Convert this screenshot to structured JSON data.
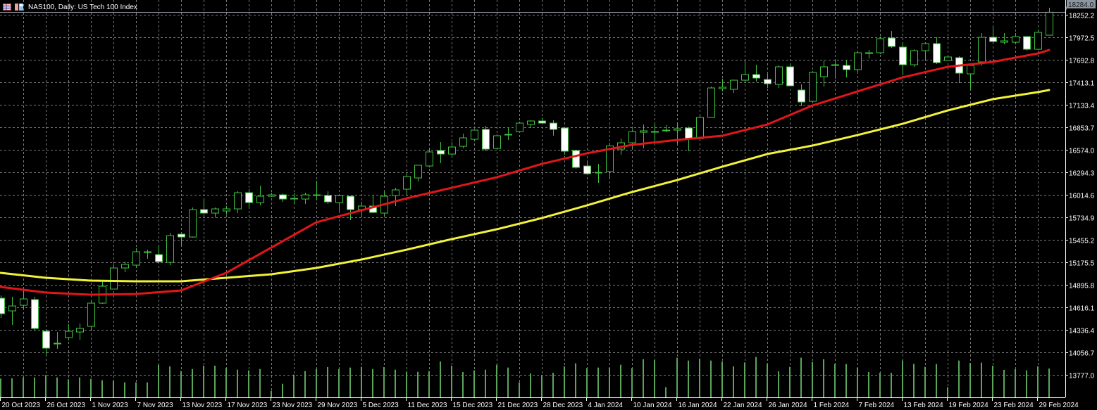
{
  "header": {
    "title": "NAS100, Daily:  US Tech 100 Index",
    "icons": [
      "table-grid-icon",
      "save-template-icon"
    ]
  },
  "colors": {
    "background": "#000000",
    "grid": "#7a7a7a",
    "bull_candle": "#3fc23f",
    "bear_candle_fill": "#ffffff",
    "volume": "#5aa55a",
    "ma_fast": "#e0161b",
    "ma_slow": "#f2f23a",
    "axis_text": "#ffffff",
    "price_label_bg": "#8c96a0"
  },
  "chart_data": {
    "type": "candlestick",
    "symbol": "NAS100",
    "timeframe": "Daily",
    "ylim": [
      13498,
      18436
    ],
    "grid": true,
    "y_ticks": [
      "18252.2",
      "17972.5",
      "17692.8",
      "17413.1",
      "17133.4",
      "16853.7",
      "16574.0",
      "16294.3",
      "16014.6",
      "15734.9",
      "15455.2",
      "15175.5",
      "14895.8",
      "14616.1",
      "14336.4",
      "14056.7",
      "13777.0"
    ],
    "x_tick_labels": [
      "20 Oct 2023",
      "26 Oct 2023",
      "1 Nov 2023",
      "7 Nov 2023",
      "13 Nov 2023",
      "17 Nov 2023",
      "23 Nov 2023",
      "29 Nov 2023",
      "5 Dec 2023",
      "11 Dec 2023",
      "15 Dec 2023",
      "21 Dec 2023",
      "28 Dec 2023",
      "4 Jan 2024",
      "10 Jan 2024",
      "16 Jan 2024",
      "22 Jan 2024",
      "26 Jan 2024",
      "1 Feb 2024",
      "7 Feb 2024",
      "13 Feb 2024",
      "19 Feb 2024",
      "23 Feb 2024",
      "29 Feb 2024"
    ],
    "current_price": "18284.0",
    "ohlc": [
      [
        14729.8,
        14764.7,
        14485.0,
        14537.5
      ],
      [
        14572.7,
        14747.5,
        14397.9,
        14633.9
      ],
      [
        14642.6,
        14834.9,
        14598.9,
        14721.3
      ],
      [
        14712.6,
        14747.5,
        14336.7,
        14354.2
      ],
      [
        14319.3,
        14345.5,
        14022.1,
        14109.5
      ],
      [
        14161.9,
        14310.5,
        14100.8,
        14170.7
      ],
      [
        14240.6,
        14406.7,
        14205.6,
        14319.3
      ],
      [
        14310.5,
        14415.4,
        14214.4,
        14354.2
      ],
      [
        14380.4,
        14695.1,
        14328.0,
        14668.9
      ],
      [
        14668.9,
        14931.1,
        14660.1,
        14878.6
      ],
      [
        14843.7,
        15149.6,
        14843.7,
        15105.9
      ],
      [
        15105.9,
        15184.5,
        15053.4,
        15149.6
      ],
      [
        15140.8,
        15350.6,
        15105.9,
        15306.9
      ],
      [
        15298.1,
        15333.1,
        15219.5,
        15306.9
      ],
      [
        15271.9,
        15394.3,
        15175.8,
        15184.5
      ],
      [
        15175.8,
        15542.9,
        15140.8,
        15507.9
      ],
      [
        15525.4,
        15525.4,
        15394.3,
        15490.4
      ],
      [
        15490.4,
        15857.5,
        15481.7,
        15831.3
      ],
      [
        15831.3,
        15971.1,
        15770.1,
        15787.6
      ],
      [
        15787.6,
        15857.5,
        15735.1,
        15840.0
      ],
      [
        15813.8,
        15875.0,
        15770.1,
        15840.0
      ],
      [
        15840.0,
        16058.5,
        15787.6,
        16041.0
      ],
      [
        16041.0,
        16084.7,
        15857.5,
        15918.7
      ],
      [
        15918.7,
        16128.4,
        15883.7,
        15997.3
      ],
      [
        15997.3,
        16041.0,
        15988.6,
        16014.8
      ],
      [
        16014.8,
        16032.3,
        15927.4,
        15962.4
      ],
      [
        15962.4,
        16041.0,
        15901.2,
        15971.1
      ],
      [
        15962.4,
        16041.0,
        15901.2,
        16014.8
      ],
      [
        16006.1,
        16189.6,
        15962.4,
        16014.8
      ],
      [
        16006.1,
        16058.5,
        15901.2,
        15927.4
      ],
      [
        15918.7,
        16006.1,
        15813.8,
        16006.1
      ],
      [
        15997.3,
        15997.3,
        15700.2,
        15831.3
      ],
      [
        15831.3,
        15927.4,
        15743.9,
        15875.0
      ],
      [
        15875.0,
        16014.8,
        15787.6,
        15796.3
      ],
      [
        15787.6,
        16049.8,
        15752.6,
        15997.3
      ],
      [
        16006.1,
        16102.2,
        15875.0,
        16076.0
      ],
      [
        16084.7,
        16277.0,
        16014.8,
        16242.1
      ],
      [
        16224.6,
        16381.9,
        16180.9,
        16381.9
      ],
      [
        16373.2,
        16600.4,
        16355.7,
        16548.0
      ],
      [
        16565.4,
        16670.3,
        16408.1,
        16521.7
      ],
      [
        16521.7,
        16670.3,
        16495.5,
        16609.1
      ],
      [
        16617.9,
        16775.2,
        16591.7,
        16722.8
      ],
      [
        16705.3,
        16827.6,
        16687.8,
        16818.9
      ],
      [
        16827.6,
        16871.3,
        16556.7,
        16582.9
      ],
      [
        16591.7,
        16766.5,
        16582.9,
        16749.0
      ],
      [
        16757.7,
        16845.1,
        16696.5,
        16766.5
      ],
      [
        16801.4,
        16923.8,
        16801.4,
        16906.3
      ],
      [
        16888.8,
        16941.3,
        16845.1,
        16932.5
      ],
      [
        16932.5,
        16976.2,
        16897.6,
        16906.3
      ],
      [
        16906.3,
        16941.3,
        16749.0,
        16827.6
      ],
      [
        16845.1,
        16853.9,
        16513.0,
        16556.7
      ],
      [
        16565.4,
        16574.2,
        16338.2,
        16355.7
      ],
      [
        16373.2,
        16416.9,
        16277.0,
        16277.0
      ],
      [
        16285.8,
        16399.4,
        16163.4,
        16294.5
      ],
      [
        16303.2,
        16661.6,
        16215.8,
        16622.8
      ],
      [
        16582.9,
        16714.0,
        16513.0,
        16661.6
      ],
      [
        16661.6,
        16827.6,
        16600.4,
        16801.4
      ],
      [
        16792.7,
        16888.8,
        16591.7,
        16810.2
      ],
      [
        16792.7,
        16888.8,
        16661.6,
        16801.4
      ],
      [
        16810.2,
        16880.1,
        16792.7,
        16818.9
      ],
      [
        16818.9,
        16915.0,
        16644.1,
        16836.4
      ],
      [
        16845.1,
        16862.6,
        16556.7,
        16714.0
      ],
      [
        16714.0,
        16993.7,
        16705.3,
        16976.2
      ],
      [
        16976.2,
        17360.8,
        16976.2,
        17343.3
      ],
      [
        17334.6,
        17456.9,
        17299.6,
        17352.0
      ],
      [
        17325.8,
        17448.2,
        17282.1,
        17439.4
      ],
      [
        17439.4,
        17675.4,
        17413.2,
        17509.4
      ],
      [
        17509.4,
        17631.7,
        17422.0,
        17465.7
      ],
      [
        17448.2,
        17518.1,
        17343.3,
        17395.7
      ],
      [
        17387.0,
        17623.0,
        17343.3,
        17605.5
      ],
      [
        17605.5,
        17631.7,
        17360.8,
        17369.5
      ],
      [
        17317.1,
        17387.0,
        17116.1,
        17168.5
      ],
      [
        17177.2,
        17553.1,
        17159.8,
        17535.6
      ],
      [
        17483.1,
        17684.2,
        17360.8,
        17605.5
      ],
      [
        17623.0,
        17692.9,
        17456.9,
        17631.7
      ],
      [
        17623.0,
        17684.2,
        17474.4,
        17570.5
      ],
      [
        17570.5,
        17806.5,
        17544.3,
        17780.3
      ],
      [
        17771.6,
        17815.3,
        17710.4,
        17780.3
      ],
      [
        17780.3,
        17981.3,
        17762.8,
        17955.1
      ],
      [
        17963.8,
        18051.2,
        17841.5,
        17859.0
      ],
      [
        17850.2,
        17911.4,
        17500.6,
        17631.7
      ],
      [
        17631.7,
        17824.0,
        17605.5,
        17806.5
      ],
      [
        17806.5,
        17911.4,
        17692.9,
        17893.9
      ],
      [
        17893.9,
        17972.6,
        17640.5,
        17657.9
      ],
      [
        17684.2,
        17745.3,
        17675.4,
        17727.9
      ],
      [
        17719.1,
        17736.6,
        17404.5,
        17526.8
      ],
      [
        17518.1,
        17631.7,
        17325.8,
        17623.0
      ],
      [
        17666.7,
        18025.0,
        17623.0,
        17972.6
      ],
      [
        17972.6,
        18094.9,
        17902.7,
        17920.1
      ],
      [
        17911.4,
        18025.0,
        17885.2,
        17928.9
      ],
      [
        17911.4,
        18025.0,
        17885.2,
        17981.3
      ],
      [
        17981.3,
        17981.3,
        17806.5,
        17824.0
      ],
      [
        17824.0,
        18068.7,
        17815.3,
        18033.8
      ],
      [
        17998.8,
        18339.7,
        17998.8,
        18284.0
      ]
    ],
    "volume_relative": [
      80,
      81,
      85,
      85,
      95,
      85,
      77,
      85,
      79,
      73,
      70,
      64,
      64,
      64,
      138,
      132,
      112,
      121,
      135,
      135,
      125,
      118,
      115,
      121,
      28,
      58,
      97,
      112,
      121,
      129,
      121,
      127,
      130,
      121,
      129,
      118,
      109,
      109,
      112,
      153,
      135,
      108,
      115,
      118,
      139,
      127,
      64,
      102,
      92,
      105,
      132,
      145,
      125,
      127,
      127,
      139,
      125,
      163,
      159,
      43,
      169,
      157,
      165,
      157,
      153,
      132,
      149,
      172,
      143,
      111,
      130,
      169,
      151,
      163,
      143,
      142,
      127,
      108,
      105,
      105,
      157,
      143,
      130,
      142,
      43,
      157,
      147,
      148,
      135,
      117,
      120,
      115,
      132,
      123
    ],
    "ma_bars": [
      0,
      4,
      8,
      12,
      16,
      20,
      24,
      28,
      32,
      36,
      40,
      44,
      48,
      52,
      56,
      60,
      64,
      68,
      72,
      76,
      80,
      84,
      88,
      92,
      93
    ],
    "ma_fast": [
      14869.9,
      14800.0,
      14773.7,
      14782.5,
      14826.2,
      15044.7,
      15359.3,
      15674.0,
      15822.5,
      15971.1,
      16102.2,
      16233.3,
      16399.4,
      16530.5,
      16635.4,
      16696.5,
      16749.0,
      16888.8,
      17124.8,
      17299.6,
      17474.4,
      17605.5,
      17666.7,
      17771.6,
      17815.3
    ],
    "ma_slow": [
      15044.7,
      14983.5,
      14948.5,
      14939.8,
      14939.8,
      14983.5,
      15027.2,
      15105.9,
      15210.7,
      15333.1,
      15464.2,
      15586.6,
      15726.4,
      15883.7,
      16049.8,
      16198.4,
      16364.4,
      16521.7,
      16626.6,
      16757.7,
      16897.6,
      17063.6,
      17203.5,
      17290.9,
      17317.1
    ]
  }
}
